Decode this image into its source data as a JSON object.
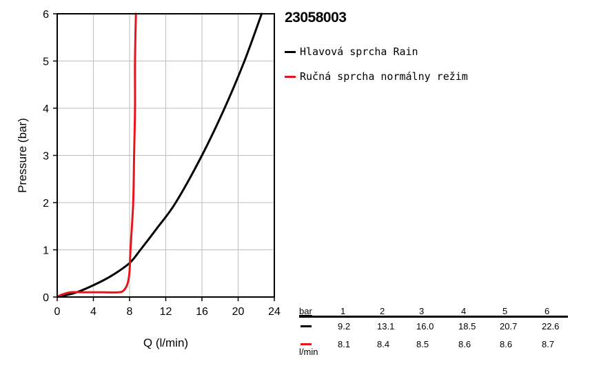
{
  "product_id": "23058003",
  "legend": [
    {
      "label": "Hlavová sprcha Rain",
      "color": "#000000"
    },
    {
      "label": "Ručná sprcha normálny režim",
      "color": "#e8141b"
    }
  ],
  "table": {
    "header_label": "bar",
    "unit_label": "l/min",
    "pressures": [
      "1",
      "2",
      "3",
      "4",
      "5",
      "6"
    ],
    "rows": [
      {
        "color": "#000000",
        "values": [
          "9.2",
          "13.1",
          "16.0",
          "18.5",
          "20.7",
          "22.6"
        ]
      },
      {
        "color": "#e8141b",
        "values": [
          "8.1",
          "8.4",
          "8.5",
          "8.6",
          "8.6",
          "8.7"
        ]
      }
    ]
  },
  "chart_data": {
    "type": "line",
    "xlabel": "Q (l/min)",
    "ylabel": "Pressure (bar)",
    "xlim": [
      0,
      24
    ],
    "ylim": [
      0,
      6
    ],
    "xticks": [
      0,
      4,
      8,
      12,
      16,
      20,
      24
    ],
    "yticks": [
      0,
      1,
      2,
      3,
      4,
      5,
      6
    ],
    "grid": true,
    "legend_position": "right",
    "series": [
      {
        "name": "Hlavová sprcha Rain",
        "color": "#000000",
        "x": [
          0,
          2,
          4,
          6,
          8,
          9.2,
          11,
          13.1,
          16.0,
          18.5,
          20.7,
          22.6
        ],
        "y": [
          0,
          0.09,
          0.25,
          0.45,
          0.72,
          1,
          1.45,
          2,
          3,
          4,
          5,
          6
        ]
      },
      {
        "name": "Ručná sprcha normálny režim",
        "color": "#e8141b",
        "x": [
          0,
          0.5,
          1.5,
          3,
          5,
          6.8,
          7.4,
          7.8,
          8.0,
          8.1,
          8.4,
          8.5,
          8.6,
          8.6,
          8.7
        ],
        "y": [
          0,
          0.05,
          0.1,
          0.1,
          0.1,
          0.1,
          0.15,
          0.3,
          0.55,
          1,
          2,
          3,
          4,
          5,
          6
        ]
      }
    ]
  }
}
